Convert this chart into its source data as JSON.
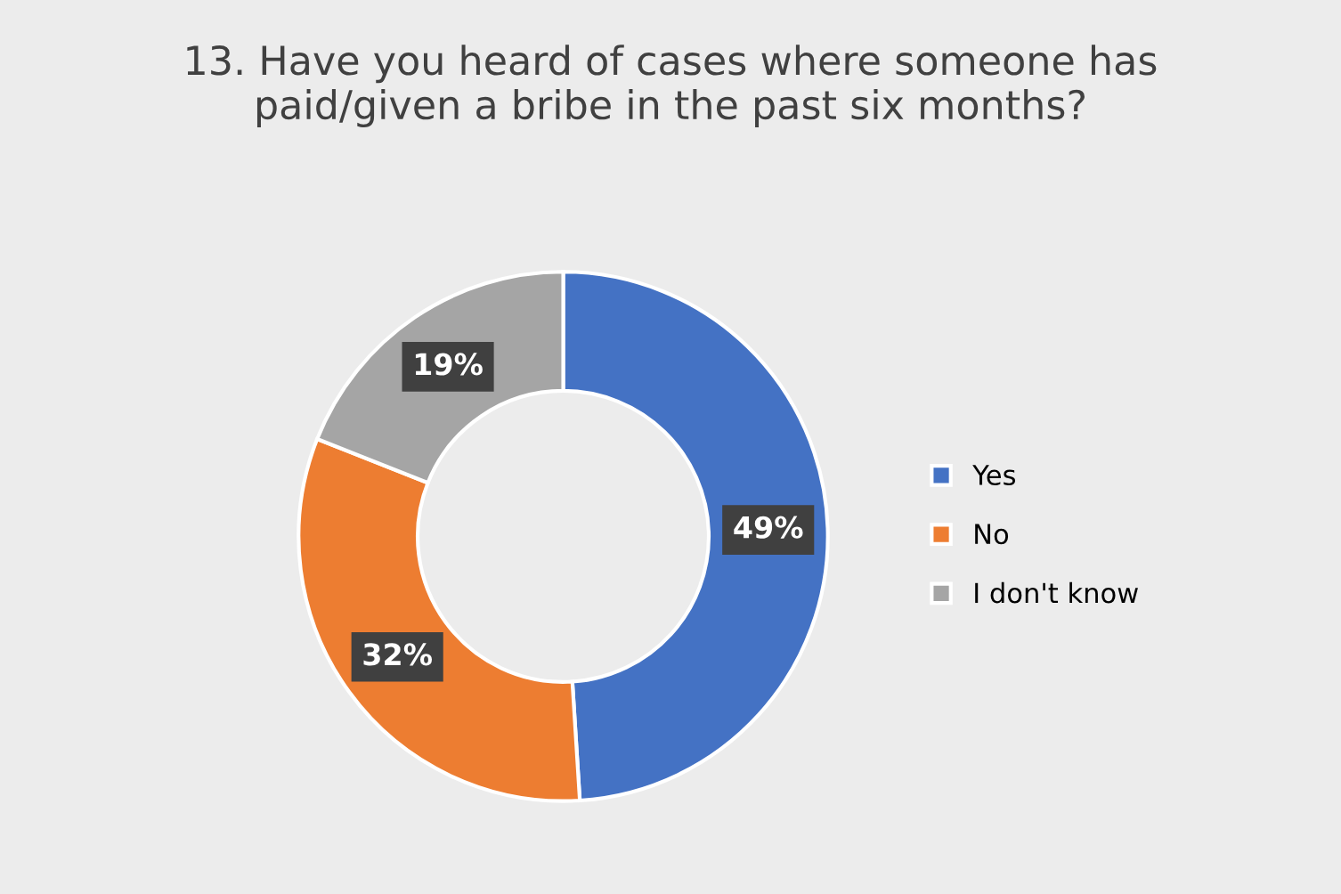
{
  "chart_data": {
    "type": "donut",
    "title": "13. Have you heard of cases where someone has\npaid/given a bribe in the past six months?",
    "categories": [
      "Yes",
      "No",
      "I don't know"
    ],
    "values": [
      49,
      32,
      19
    ],
    "colors": [
      "#4472c4",
      "#ed7d31",
      "#a5a5a5"
    ],
    "value_labels": [
      "49%",
      "32%",
      "19%"
    ],
    "legend": "right"
  }
}
